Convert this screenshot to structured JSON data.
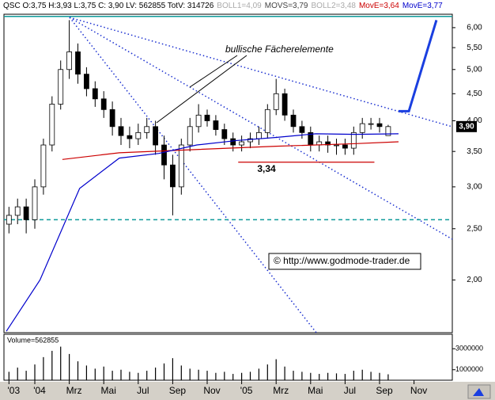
{
  "header": [
    "QSC O:3,75 H:3,93 L:3,75 C: 3,90 LV: 562855 TotV: 314726",
    "BOLL1=4,09",
    "MOVS=3,79",
    "BOLL2=3,48",
    "MovE=3,64",
    "MovE=3,77"
  ],
  "chart_data": [
    {
      "type": "candlestick",
      "log_scale": true,
      "annotation": "bullische Fächerelemente",
      "watermark": "© http://www.godmode-trader.de",
      "xlim": [
        -1.79,
        24.22
      ],
      "xticks": [
        {
          "value": -1.5,
          "label": "'03"
        },
        {
          "value": 0,
          "label": "'04"
        },
        {
          "value": 2,
          "label": "Mrz"
        },
        {
          "value": 4,
          "label": "Mai"
        },
        {
          "value": 6,
          "label": "Jul"
        },
        {
          "value": 8,
          "label": "Sep"
        },
        {
          "value": 10,
          "label": "Nov"
        },
        {
          "value": 12,
          "label": "'05"
        },
        {
          "value": 14,
          "label": "Mrz"
        },
        {
          "value": 16,
          "label": "Mai"
        },
        {
          "value": 18,
          "label": "Jul"
        },
        {
          "value": 20,
          "label": "Sep"
        },
        {
          "value": 22,
          "label": "Nov"
        }
      ],
      "ylim": [
        1.59,
        6.36
      ],
      "yticks": [
        {
          "value": 2,
          "label": "2,00"
        },
        {
          "value": 2.5,
          "label": "2,50"
        },
        {
          "value": 3,
          "label": "3,00"
        },
        {
          "value": 3.5,
          "label": "3,50"
        },
        {
          "value": 4,
          "label": "4,00"
        },
        {
          "value": 4.5,
          "label": "4,50"
        },
        {
          "value": 5,
          "label": "5,00"
        },
        {
          "value": 5.5,
          "label": "5,50"
        },
        {
          "value": 6,
          "label": "6,00"
        }
      ],
      "x": [
        -1.5,
        -1,
        -0.5,
        0,
        0.5,
        1,
        1.5,
        2,
        2.5,
        3,
        3.5,
        4,
        4.5,
        5,
        5.5,
        6,
        6.5,
        7,
        7.5,
        8,
        8.5,
        9,
        9.5,
        10,
        10.5,
        11,
        11.5,
        12,
        12.5,
        13,
        13.5,
        14,
        14.5,
        15,
        15.5,
        16,
        16.5,
        17,
        17.5,
        18,
        18.5,
        19,
        19.5,
        20,
        20.5
      ],
      "open": [
        2.55,
        2.65,
        2.75,
        2.6,
        3.0,
        3.6,
        4.3,
        5.0,
        5.4,
        4.9,
        4.6,
        4.4,
        4.2,
        3.9,
        3.75,
        3.7,
        3.8,
        3.9,
        3.6,
        3.3,
        3.0,
        3.6,
        3.9,
        4.1,
        4.0,
        3.85,
        3.7,
        3.6,
        3.65,
        3.7,
        3.8,
        4.2,
        4.5,
        4.1,
        3.9,
        3.8,
        3.6,
        3.65,
        3.6,
        3.6,
        3.55,
        3.8,
        3.95,
        3.95,
        3.75
      ],
      "high": [
        2.75,
        2.85,
        2.85,
        3.1,
        3.7,
        4.45,
        5.2,
        6.2,
        5.6,
        5.05,
        4.75,
        4.55,
        4.35,
        4.05,
        3.9,
        3.95,
        4.05,
        4.0,
        3.75,
        3.45,
        3.7,
        4.05,
        4.3,
        4.2,
        4.1,
        3.95,
        3.8,
        3.75,
        3.8,
        3.9,
        4.3,
        4.8,
        4.6,
        4.2,
        4.0,
        3.9,
        3.75,
        3.75,
        3.7,
        3.7,
        3.9,
        4.05,
        4.05,
        4.05,
        3.93
      ],
      "low": [
        2.45,
        2.55,
        2.45,
        2.5,
        2.9,
        3.5,
        4.2,
        4.8,
        4.7,
        4.45,
        4.25,
        4.05,
        3.75,
        3.6,
        3.55,
        3.6,
        3.7,
        3.45,
        3.1,
        2.65,
        2.9,
        3.5,
        3.8,
        3.9,
        3.75,
        3.6,
        3.5,
        3.5,
        3.55,
        3.6,
        3.7,
        4.1,
        4.0,
        3.8,
        3.7,
        3.5,
        3.5,
        3.48,
        3.45,
        3.45,
        3.45,
        3.7,
        3.85,
        3.8,
        3.75
      ],
      "close": [
        2.65,
        2.75,
        2.6,
        3.0,
        3.6,
        4.3,
        5.0,
        5.4,
        4.9,
        4.6,
        4.4,
        4.2,
        3.9,
        3.75,
        3.7,
        3.8,
        3.9,
        3.6,
        3.3,
        3.0,
        3.6,
        3.9,
        4.1,
        4.0,
        3.85,
        3.7,
        3.6,
        3.65,
        3.7,
        3.8,
        4.2,
        4.5,
        4.1,
        3.9,
        3.8,
        3.6,
        3.65,
        3.6,
        3.6,
        3.55,
        3.8,
        3.95,
        3.95,
        3.9,
        3.9
      ],
      "up_color": "#ffffff",
      "down_color": "#000000",
      "series": [
        {
          "color": "#cc0000",
          "x": [
            1.6,
            4.9,
            9.4,
            14,
            18.5,
            21.1
          ],
          "values": [
            3.38,
            3.48,
            3.53,
            3.58,
            3.62,
            3.65
          ]
        },
        {
          "color": "#0000cc",
          "x": [
            -1.65,
            0.3,
            2.6,
            4.9,
            7.2,
            9.4,
            11.7,
            14,
            16.3,
            18.6,
            21.1
          ],
          "values": [
            1.6,
            2.0,
            2.98,
            3.4,
            3.47,
            3.6,
            3.67,
            3.72,
            3.78,
            3.77,
            3.78
          ]
        },
        {
          "color": "#1a3fe0",
          "x": [
            21.1,
            21.7,
            23.3
          ],
          "values": [
            4.17,
            4.17,
            6.2
          ]
        }
      ],
      "support": {
        "value": 3.34,
        "label": "3,34",
        "x": [
          11.8,
          19.7
        ]
      },
      "levels": [
        2.6,
        6.3
      ],
      "last_price": {
        "value": 3.9,
        "label": "3,90"
      }
    },
    {
      "type": "bar",
      "title": "Volume=562855",
      "color": "#000000",
      "ylim": [
        0,
        4380000
      ],
      "yticks": [
        1000000,
        3000000
      ],
      "x": [
        -1.5,
        -1,
        -0.5,
        0,
        0.5,
        1,
        1.5,
        2,
        2.5,
        3,
        3.5,
        4,
        4.5,
        5,
        5.5,
        6,
        6.5,
        7,
        7.5,
        8,
        8.5,
        9,
        9.5,
        10,
        10.5,
        11,
        11.5,
        12,
        12.5,
        13,
        13.5,
        14,
        14.5,
        15,
        15.5,
        16,
        16.5,
        17,
        17.5,
        18,
        18.5,
        19,
        19.5,
        20,
        20.5
      ],
      "values": [
        800000,
        1200000,
        900000,
        1500000,
        2200000,
        2800000,
        3200000,
        2500000,
        1800000,
        1400000,
        1100000,
        1300000,
        900000,
        1000000,
        800000,
        700000,
        900000,
        1200000,
        1600000,
        2100000,
        1400000,
        1100000,
        1000000,
        900000,
        700000,
        800000,
        600000,
        700000,
        800000,
        1100000,
        1500000,
        2000000,
        1300000,
        900000,
        800000,
        700000,
        600000,
        700000,
        650000,
        600000,
        900000,
        1000000,
        800000,
        700000,
        562855
      ]
    }
  ]
}
